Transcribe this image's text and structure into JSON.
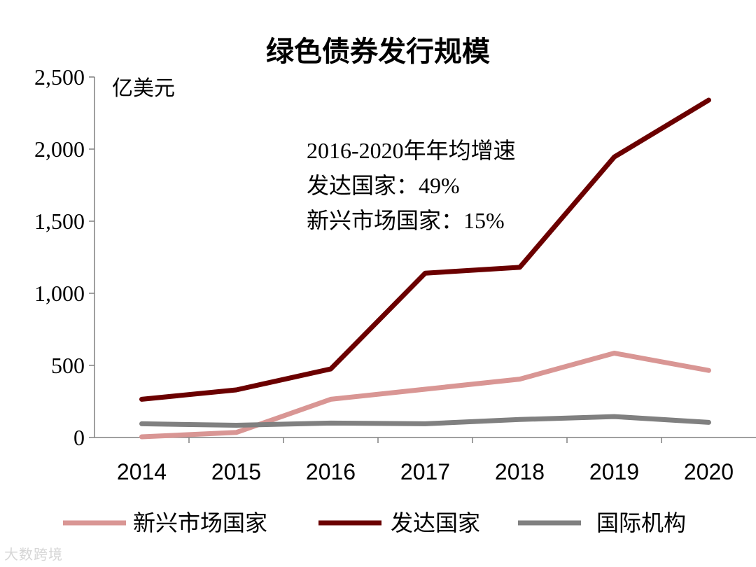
{
  "chart_data": {
    "type": "line",
    "title": "绿色债券发行规模",
    "unit_label": "亿美元",
    "categories": [
      "2014",
      "2015",
      "2016",
      "2017",
      "2018",
      "2019",
      "2020"
    ],
    "ylim": [
      0,
      2500
    ],
    "yticks": [
      0,
      500,
      1000,
      1500,
      2000,
      2500
    ],
    "ytick_labels": [
      "0",
      "500",
      "1,000",
      "1,500",
      "2,000",
      "2,500"
    ],
    "series": [
      {
        "name": "新兴市场国家",
        "color": "#d99694",
        "values": [
          5,
          35,
          265,
          335,
          405,
          585,
          465
        ]
      },
      {
        "name": "发达国家",
        "color": "#6b0000",
        "values": [
          265,
          330,
          475,
          1140,
          1180,
          1945,
          2340
        ]
      },
      {
        "name": "国际机构",
        "color": "#808080",
        "values": [
          95,
          85,
          100,
          95,
          125,
          145,
          105
        ]
      }
    ],
    "annotation": [
      "2016-2020年年均增速",
      "发达国家：49%",
      "新兴市场国家：15%"
    ],
    "legend_position": "bottom",
    "grid": false
  },
  "watermark": "大数跨境"
}
